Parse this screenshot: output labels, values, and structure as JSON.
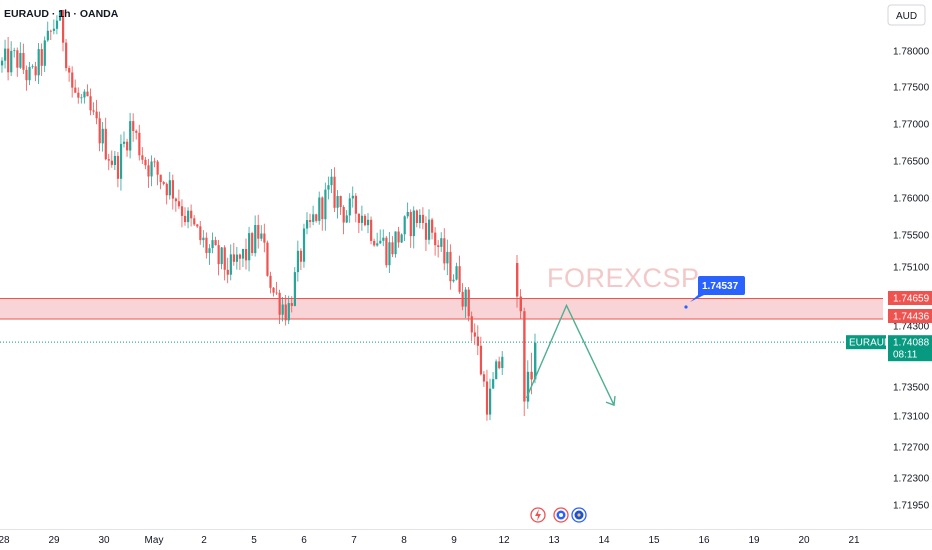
{
  "header": {
    "symbol_label": "EURAUD · 1h · OANDA",
    "currency_button": "AUD",
    "watermark": "FOREXCSP"
  },
  "colors": {
    "up": "#26a69a",
    "down": "#ef5350",
    "zone_fill": "#f8c9cc",
    "zone_line": "#ef5350",
    "callout": "#2962ff",
    "arrow": "#4caf92",
    "price_tag": "#089981"
  },
  "price_tags": {
    "zone_top": "1.74659",
    "zone_bottom": "1.74436",
    "last_price": "1.74088",
    "countdown": "08:11",
    "last_symbol": "EURAUD",
    "callout": "1.74537"
  },
  "bottom_icons": [
    "lightning-icon",
    "flag-icon",
    "globe-icon"
  ],
  "chart_data": {
    "type": "candlestick",
    "title": "",
    "symbol": "EURAUD",
    "timeframe": "1h",
    "ylim": [
      1.7175,
      1.7835
    ],
    "y_ticks": [
      1.78,
      1.775,
      1.77,
      1.765,
      1.76,
      1.755,
      1.751,
      1.743,
      1.735,
      1.731,
      1.727,
      1.723,
      1.7195
    ],
    "y_tick_labels": [
      "1.78000",
      "1.77500",
      "1.77000",
      "1.76500",
      "1.76000",
      "1.75500",
      "1.75100",
      "1.74300",
      "1.73500",
      "1.73100",
      "1.72700",
      "1.72300",
      "1.71950"
    ],
    "x_ticks": [
      "28",
      "29",
      "30",
      "May",
      "2",
      "5",
      "6",
      "7",
      "8",
      "9",
      "12",
      "13",
      "14",
      "15",
      "16",
      "19",
      "20",
      "21"
    ],
    "trend_path": [
      1.778,
      1.779,
      1.776,
      1.78,
      1.785,
      1.774,
      1.772,
      1.768,
      1.764,
      1.77,
      1.765,
      1.763,
      1.761,
      1.757,
      1.754,
      1.752,
      1.7505,
      1.7525,
      1.7555,
      1.7475,
      1.745,
      1.7535,
      1.758,
      1.761,
      1.758,
      1.7585,
      1.7555,
      1.753,
      1.7555,
      1.7575,
      1.7558,
      1.7515,
      1.7492,
      1.7425,
      1.7325,
      1.7395
    ],
    "resistance_zone": {
      "top": 1.74659,
      "bottom": 1.74436
    },
    "current_price": 1.74088,
    "callout_price": 1.74537,
    "projection": {
      "points": [
        {
          "day": 12.45,
          "price": 1.7335
        },
        {
          "day": 13.25,
          "price": 1.7458
        },
        {
          "day": 14.2,
          "price": 1.7325
        }
      ]
    }
  }
}
